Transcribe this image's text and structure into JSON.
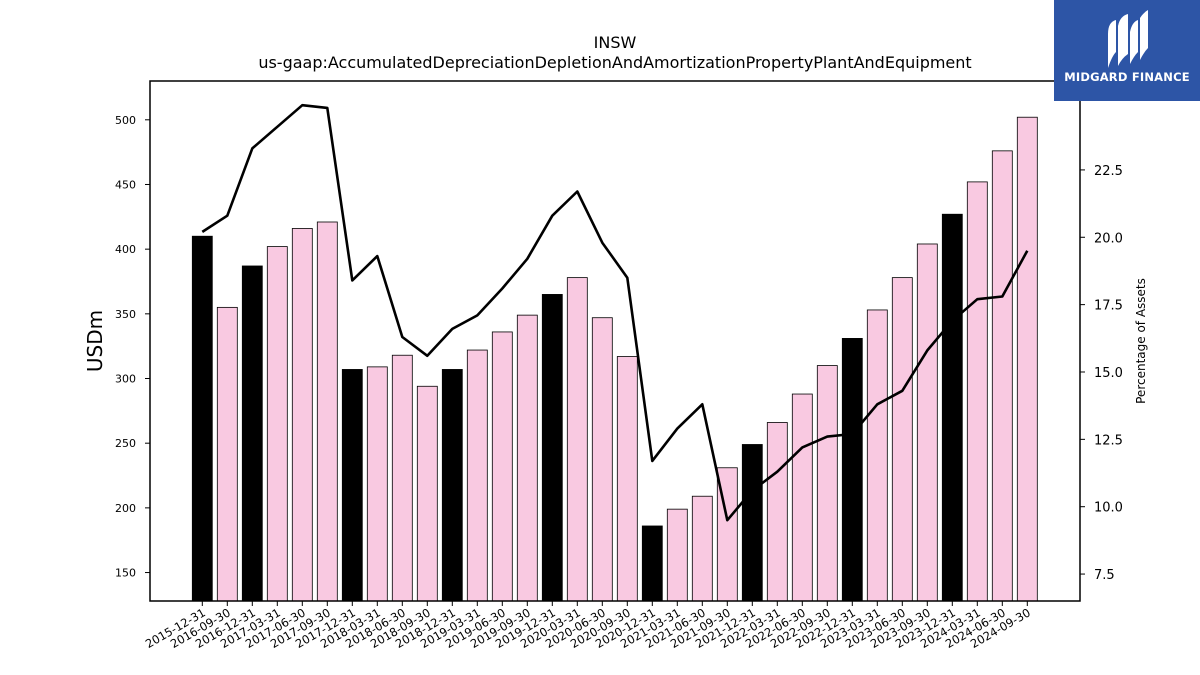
{
  "chart_data": {
    "type": "bar",
    "title": "INSW",
    "subtitle": "us-gaap:AccumulatedDepreciationDepletionAndAmortizationPropertyPlantAndEquipment",
    "ylabel": "USDm",
    "ylabel_right": "Percentage of Assets",
    "ylim": [
      128,
      530
    ],
    "ylim_right": [
      6.5,
      25.8
    ],
    "yticks": [
      150,
      200,
      250,
      300,
      350,
      400,
      450,
      500
    ],
    "yticks_right": [
      7.5,
      10.0,
      12.5,
      15.0,
      17.5,
      20.0,
      22.5
    ],
    "categories": [
      "2015-12-31",
      "2016-09-30",
      "2016-12-31",
      "2017-03-31",
      "2017-06-30",
      "2017-09-30",
      "2017-12-31",
      "2018-03-31",
      "2018-06-30",
      "2018-09-30",
      "2018-12-31",
      "2019-03-31",
      "2019-06-30",
      "2019-09-30",
      "2019-12-31",
      "2020-03-31",
      "2020-06-30",
      "2020-09-30",
      "2020-12-31",
      "2021-03-31",
      "2021-06-30",
      "2021-09-30",
      "2021-12-31",
      "2022-03-31",
      "2022-06-30",
      "2022-09-30",
      "2022-12-31",
      "2023-03-31",
      "2023-06-30",
      "2023-09-30",
      "2023-12-31",
      "2024-03-31",
      "2024-06-30",
      "2024-09-30"
    ],
    "series": [
      {
        "type": "bar",
        "axis": "left",
        "values": [
          410,
          355,
          387,
          402,
          416,
          421,
          307,
          309,
          318,
          294,
          307,
          322,
          336,
          349,
          365,
          378,
          347,
          317,
          186,
          199,
          209,
          231,
          249,
          266,
          288,
          310,
          331,
          353,
          378,
          404,
          427,
          452,
          476,
          502
        ],
        "colors": [
          "#000000",
          "#f9c9e1",
          "#000000",
          "#f9c9e1",
          "#f9c9e1",
          "#f9c9e1",
          "#000000",
          "#f9c9e1",
          "#f9c9e1",
          "#f9c9e1",
          "#000000",
          "#f9c9e1",
          "#f9c9e1",
          "#f9c9e1",
          "#000000",
          "#f9c9e1",
          "#f9c9e1",
          "#f9c9e1",
          "#000000",
          "#f9c9e1",
          "#f9c9e1",
          "#f9c9e1",
          "#000000",
          "#f9c9e1",
          "#f9c9e1",
          "#f9c9e1",
          "#000000",
          "#f9c9e1",
          "#f9c9e1",
          "#f9c9e1",
          "#000000",
          "#f9c9e1",
          "#f9c9e1",
          "#f9c9e1"
        ]
      },
      {
        "type": "line",
        "axis": "right",
        "color": "#000000",
        "values": [
          20.2,
          20.8,
          23.3,
          24.1,
          24.9,
          24.8,
          18.4,
          19.3,
          16.3,
          15.6,
          16.6,
          17.1,
          18.1,
          19.2,
          20.8,
          21.7,
          19.8,
          18.5,
          11.7,
          12.9,
          13.8,
          9.5,
          10.6,
          11.3,
          12.2,
          12.6,
          12.7,
          13.8,
          14.3,
          15.8,
          16.9,
          17.7,
          17.8,
          19.5
        ]
      }
    ],
    "grid": false,
    "legend": "none"
  },
  "logo": {
    "text": "MIDGARD FINANCE",
    "icon": "midgard-logo-icon"
  }
}
